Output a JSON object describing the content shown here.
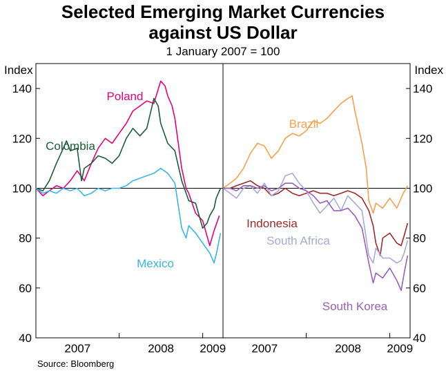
{
  "header": {
    "title_line1": "Selected Emerging Market Currencies",
    "title_line2": "against US Dollar",
    "subtitle": "1 January 2007 = 100"
  },
  "footer": {
    "source": "Source: Bloomberg"
  },
  "chart_data": [
    {
      "type": "line",
      "panel": "left",
      "ylabel": "Index",
      "ylim": [
        40,
        150
      ],
      "yticks": [
        40,
        60,
        80,
        100,
        120,
        140
      ],
      "xlim": [
        "2007-01-01",
        "2009-03-31"
      ],
      "xtick_labels": [
        "2007",
        "2008",
        "2009"
      ],
      "reference_line": 100,
      "series": [
        {
          "name": "Poland",
          "color": "#e6007e",
          "points": [
            [
              "2007-01-01",
              100
            ],
            [
              "2007-02-01",
              97
            ],
            [
              "2007-03-01",
              99
            ],
            [
              "2007-04-01",
              101
            ],
            [
              "2007-05-01",
              100
            ],
            [
              "2007-06-01",
              103
            ],
            [
              "2007-07-01",
              107
            ],
            [
              "2007-08-01",
              103
            ],
            [
              "2007-09-01",
              110
            ],
            [
              "2007-10-01",
              116
            ],
            [
              "2007-11-01",
              120
            ],
            [
              "2007-12-01",
              118
            ],
            [
              "2008-01-01",
              122
            ],
            [
              "2008-02-01",
              126
            ],
            [
              "2008-03-01",
              131
            ],
            [
              "2008-04-01",
              133
            ],
            [
              "2008-05-01",
              135
            ],
            [
              "2008-06-01",
              134
            ],
            [
              "2008-07-01",
              143
            ],
            [
              "2008-07-20",
              141
            ],
            [
              "2008-08-01",
              137
            ],
            [
              "2008-08-20",
              133
            ],
            [
              "2008-09-01",
              128
            ],
            [
              "2008-10-01",
              108
            ],
            [
              "2008-10-20",
              100
            ],
            [
              "2008-11-01",
              98
            ],
            [
              "2008-12-01",
              90
            ],
            [
              "2009-01-01",
              87
            ],
            [
              "2009-02-01",
              77
            ],
            [
              "2009-02-20",
              83
            ],
            [
              "2009-03-15",
              89
            ]
          ]
        },
        {
          "name": "Colombia",
          "color": "#1a5c3a",
          "points": [
            [
              "2007-01-01",
              100
            ],
            [
              "2007-02-01",
              99
            ],
            [
              "2007-03-01",
              103
            ],
            [
              "2007-04-01",
              110
            ],
            [
              "2007-05-01",
              116
            ],
            [
              "2007-05-15",
              119
            ],
            [
              "2007-06-01",
              115
            ],
            [
              "2007-07-01",
              116
            ],
            [
              "2007-07-20",
              103
            ],
            [
              "2007-08-01",
              108
            ],
            [
              "2007-09-01",
              110
            ],
            [
              "2007-10-01",
              113
            ],
            [
              "2007-11-01",
              112
            ],
            [
              "2007-12-01",
              110
            ],
            [
              "2008-01-01",
              113
            ],
            [
              "2008-02-01",
              120
            ],
            [
              "2008-03-01",
              124
            ],
            [
              "2008-04-01",
              121
            ],
            [
              "2008-05-01",
              124
            ],
            [
              "2008-06-01",
              136
            ],
            [
              "2008-06-20",
              133
            ],
            [
              "2008-07-01",
              126
            ],
            [
              "2008-08-01",
              118
            ],
            [
              "2008-09-01",
              115
            ],
            [
              "2008-10-01",
              103
            ],
            [
              "2008-11-01",
              95
            ],
            [
              "2008-12-01",
              94
            ],
            [
              "2009-01-01",
              84
            ],
            [
              "2009-01-20",
              86
            ],
            [
              "2009-02-01",
              89
            ],
            [
              "2009-02-20",
              92
            ],
            [
              "2009-03-01",
              96
            ],
            [
              "2009-03-20",
              100
            ]
          ]
        },
        {
          "name": "Mexico",
          "color": "#38b6e6",
          "points": [
            [
              "2007-01-01",
              100
            ],
            [
              "2007-02-01",
              98
            ],
            [
              "2007-03-01",
              99
            ],
            [
              "2007-04-01",
              98
            ],
            [
              "2007-05-01",
              100
            ],
            [
              "2007-06-01",
              99
            ],
            [
              "2007-07-01",
              100
            ],
            [
              "2007-08-01",
              97
            ],
            [
              "2007-09-01",
              98
            ],
            [
              "2007-10-01",
              100
            ],
            [
              "2007-11-01",
              99
            ],
            [
              "2007-12-01",
              100
            ],
            [
              "2008-01-01",
              100
            ],
            [
              "2008-02-01",
              101
            ],
            [
              "2008-03-01",
              103
            ],
            [
              "2008-04-01",
              104
            ],
            [
              "2008-05-01",
              105
            ],
            [
              "2008-06-01",
              106
            ],
            [
              "2008-07-01",
              108
            ],
            [
              "2008-08-01",
              106
            ],
            [
              "2008-09-01",
              102
            ],
            [
              "2008-10-01",
              84
            ],
            [
              "2008-10-20",
              80
            ],
            [
              "2008-11-01",
              85
            ],
            [
              "2008-12-01",
              82
            ],
            [
              "2009-01-01",
              78
            ],
            [
              "2009-02-01",
              74
            ],
            [
              "2009-02-20",
              70
            ],
            [
              "2009-03-05",
              75
            ],
            [
              "2009-03-20",
              82
            ]
          ]
        }
      ],
      "labels": [
        {
          "text": "Poland",
          "series": "Poland"
        },
        {
          "text": "Colombia",
          "series": "Colombia"
        },
        {
          "text": "Mexico",
          "series": "Mexico"
        }
      ]
    },
    {
      "type": "line",
      "panel": "right",
      "ylabel": "Index",
      "ylim": [
        40,
        150
      ],
      "yticks": [
        40,
        60,
        80,
        100,
        120,
        140
      ],
      "xlim": [
        "2007-01-01",
        "2009-03-31"
      ],
      "xtick_labels": [
        "2007",
        "2008",
        "2009"
      ],
      "reference_line": 100,
      "series": [
        {
          "name": "Brazil",
          "color": "#f5a14b",
          "points": [
            [
              "2007-01-01",
              100
            ],
            [
              "2007-02-01",
              102
            ],
            [
              "2007-03-01",
              104
            ],
            [
              "2007-04-01",
              108
            ],
            [
              "2007-05-01",
              114
            ],
            [
              "2007-06-01",
              118
            ],
            [
              "2007-07-01",
              117
            ],
            [
              "2007-08-01",
              112
            ],
            [
              "2007-09-01",
              115
            ],
            [
              "2007-10-01",
              120
            ],
            [
              "2007-11-01",
              122
            ],
            [
              "2007-12-01",
              121
            ],
            [
              "2008-01-01",
              123
            ],
            [
              "2008-02-01",
              127
            ],
            [
              "2008-03-01",
              126
            ],
            [
              "2008-04-01",
              128
            ],
            [
              "2008-05-01",
              131
            ],
            [
              "2008-06-01",
              134
            ],
            [
              "2008-07-01",
              136
            ],
            [
              "2008-07-20",
              137
            ],
            [
              "2008-08-01",
              131
            ],
            [
              "2008-09-01",
              118
            ],
            [
              "2008-09-20",
              108
            ],
            [
              "2008-10-01",
              95
            ],
            [
              "2008-10-20",
              90
            ],
            [
              "2008-11-01",
              94
            ],
            [
              "2008-12-01",
              92
            ],
            [
              "2009-01-01",
              96
            ],
            [
              "2009-02-01",
              92
            ],
            [
              "2009-03-01",
              98
            ],
            [
              "2009-03-20",
              101
            ]
          ]
        },
        {
          "name": "Indonesia",
          "color": "#9c2a2a",
          "points": [
            [
              "2007-01-01",
              100
            ],
            [
              "2007-02-01",
              100
            ],
            [
              "2007-03-01",
              101
            ],
            [
              "2007-04-01",
              102
            ],
            [
              "2007-05-01",
              103
            ],
            [
              "2007-06-01",
              101
            ],
            [
              "2007-07-01",
              100
            ],
            [
              "2007-08-01",
              97
            ],
            [
              "2007-09-01",
              98
            ],
            [
              "2007-10-01",
              100
            ],
            [
              "2007-11-01",
              98
            ],
            [
              "2007-12-01",
              97
            ],
            [
              "2008-01-01",
              98
            ],
            [
              "2008-02-01",
              99
            ],
            [
              "2008-03-01",
              98
            ],
            [
              "2008-04-01",
              98
            ],
            [
              "2008-05-01",
              97
            ],
            [
              "2008-06-01",
              98
            ],
            [
              "2008-07-01",
              99
            ],
            [
              "2008-08-01",
              98
            ],
            [
              "2008-09-01",
              96
            ],
            [
              "2008-10-01",
              91
            ],
            [
              "2008-10-20",
              85
            ],
            [
              "2008-11-01",
              78
            ],
            [
              "2008-11-20",
              73
            ],
            [
              "2008-12-01",
              80
            ],
            [
              "2009-01-01",
              82
            ],
            [
              "2009-02-01",
              78
            ],
            [
              "2009-02-20",
              77
            ],
            [
              "2009-03-05",
              81
            ],
            [
              "2009-03-20",
              86
            ]
          ]
        },
        {
          "name": "South Africa",
          "color": "#a7a9d8",
          "points": [
            [
              "2007-01-01",
              100
            ],
            [
              "2007-02-01",
              98
            ],
            [
              "2007-03-01",
              96
            ],
            [
              "2007-04-01",
              100
            ],
            [
              "2007-05-01",
              101
            ],
            [
              "2007-06-01",
              98
            ],
            [
              "2007-07-01",
              102
            ],
            [
              "2007-08-01",
              97
            ],
            [
              "2007-09-01",
              99
            ],
            [
              "2007-10-01",
              105
            ],
            [
              "2007-11-01",
              106
            ],
            [
              "2007-12-01",
              102
            ],
            [
              "2008-01-01",
              99
            ],
            [
              "2008-02-01",
              94
            ],
            [
              "2008-03-01",
              90
            ],
            [
              "2008-04-01",
              93
            ],
            [
              "2008-05-01",
              96
            ],
            [
              "2008-06-01",
              91
            ],
            [
              "2008-07-01",
              97
            ],
            [
              "2008-08-01",
              94
            ],
            [
              "2008-09-01",
              91
            ],
            [
              "2008-10-01",
              73
            ],
            [
              "2008-10-20",
              70
            ],
            [
              "2008-11-01",
              76
            ],
            [
              "2008-12-01",
              72
            ],
            [
              "2009-01-01",
              72
            ],
            [
              "2009-02-01",
              70
            ],
            [
              "2009-02-20",
              71
            ],
            [
              "2009-03-05",
              74
            ],
            [
              "2009-03-20",
              79
            ]
          ]
        },
        {
          "name": "South Korea",
          "color": "#9b5fb5",
          "points": [
            [
              "2007-01-01",
              100
            ],
            [
              "2007-02-01",
              100
            ],
            [
              "2007-03-01",
              99
            ],
            [
              "2007-04-01",
              101
            ],
            [
              "2007-05-01",
              101
            ],
            [
              "2007-06-01",
              100
            ],
            [
              "2007-07-01",
              101
            ],
            [
              "2007-08-01",
              99
            ],
            [
              "2007-09-01",
              100
            ],
            [
              "2007-10-01",
              102
            ],
            [
              "2007-11-01",
              102
            ],
            [
              "2007-12-01",
              100
            ],
            [
              "2008-01-01",
              99
            ],
            [
              "2008-02-01",
              97
            ],
            [
              "2008-03-01",
              94
            ],
            [
              "2008-04-01",
              95
            ],
            [
              "2008-05-01",
              91
            ],
            [
              "2008-06-01",
              91
            ],
            [
              "2008-07-01",
              92
            ],
            [
              "2008-08-01",
              89
            ],
            [
              "2008-09-01",
              84
            ],
            [
              "2008-10-01",
              70
            ],
            [
              "2008-10-20",
              62
            ],
            [
              "2008-11-01",
              66
            ],
            [
              "2008-12-01",
              64
            ],
            [
              "2009-01-01",
              68
            ],
            [
              "2009-02-01",
              63
            ],
            [
              "2009-02-20",
              59
            ],
            [
              "2009-03-05",
              66
            ],
            [
              "2009-03-20",
              73
            ]
          ]
        }
      ],
      "labels": [
        {
          "text": "Brazil",
          "series": "Brazil"
        },
        {
          "text": "Indonesia",
          "series": "Indonesia"
        },
        {
          "text": "South Africa",
          "series": "South Africa"
        },
        {
          "text": "South Korea",
          "series": "South Korea"
        }
      ]
    }
  ]
}
